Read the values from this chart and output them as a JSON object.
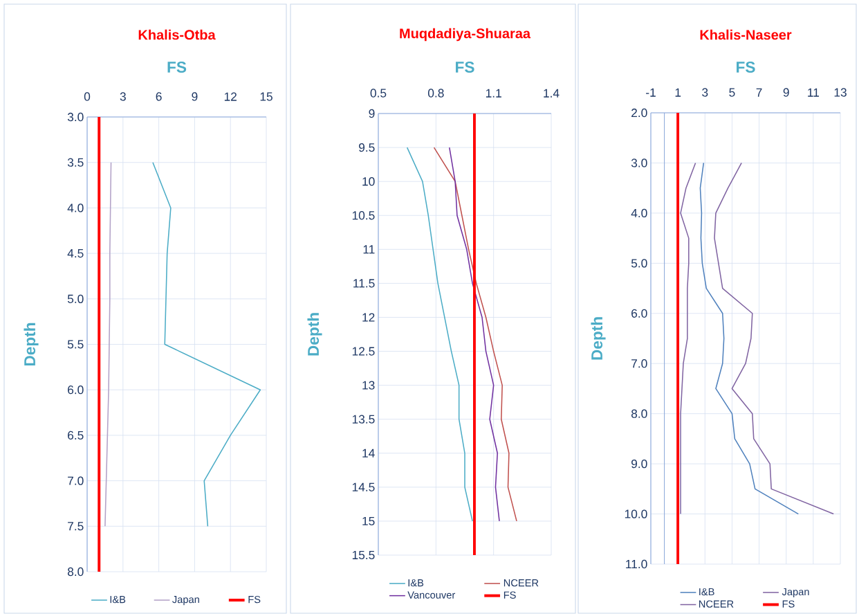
{
  "chart_data": [
    {
      "type": "line",
      "title": "Khalis-Otba",
      "xlabel": "FS",
      "ylabel": "Depth",
      "xlim": [
        0,
        15
      ],
      "xticks": [
        0,
        3,
        6,
        9,
        12,
        15
      ],
      "ylim": [
        8.0,
        3.0
      ],
      "yticks": [
        {
          "value": 3,
          "label": "3.0"
        },
        {
          "value": 3.5,
          "label": "3.5"
        },
        {
          "value": 4,
          "label": "4.0"
        },
        {
          "value": 4.5,
          "label": "4.5"
        },
        {
          "value": 5,
          "label": "5.0"
        },
        {
          "value": 5.5,
          "label": "5.5"
        },
        {
          "value": 6,
          "label": "6.0"
        },
        {
          "value": 6.5,
          "label": "6.5"
        },
        {
          "value": 7,
          "label": "7.0"
        },
        {
          "value": 7.5,
          "label": "7.5"
        },
        {
          "value": 8,
          "label": "8.0"
        }
      ],
      "grid": true,
      "legend": "bottom",
      "series": [
        {
          "name": "I&B",
          "color": "#4bacc6",
          "x": [
            5.5,
            7.0,
            6.7,
            6.6,
            6.5,
            14.5,
            12.0,
            9.8,
            10.1
          ],
          "values": [
            3.5,
            4.0,
            4.5,
            5.0,
            5.5,
            6.0,
            6.5,
            7.0,
            7.5
          ]
        },
        {
          "name": "Japan",
          "color": "#b2a1c7",
          "x": [
            2.0,
            1.95,
            1.9,
            1.9,
            1.85,
            1.8,
            1.7,
            1.6,
            1.5
          ],
          "values": [
            3.5,
            4.0,
            4.5,
            5.0,
            5.5,
            6.0,
            6.5,
            7.0,
            7.5
          ]
        }
      ],
      "ref_lines": [
        {
          "axis": "x",
          "value": 1,
          "label": "FS",
          "color": "#ff0000"
        }
      ]
    },
    {
      "type": "line",
      "title": "Muqdadiya-Shuaraa",
      "xlabel": "FS",
      "ylabel": "Depth",
      "xlim": [
        0.5,
        1.4
      ],
      "xticks": [
        0.5,
        0.8,
        1.1,
        1.4
      ],
      "ylim": [
        15.5,
        9
      ],
      "yticks": [
        9,
        9.5,
        10,
        10.5,
        11,
        11.5,
        12,
        12.5,
        13,
        13.5,
        14,
        14.5,
        15,
        15.5
      ],
      "grid": true,
      "legend": "bottom",
      "series": [
        {
          "name": "I&B",
          "color": "#4bacc6",
          "x": [
            0.65,
            0.73,
            0.76,
            0.785,
            0.81,
            0.845,
            0.88,
            0.92,
            0.92,
            0.95,
            0.95,
            0.99
          ],
          "values": [
            9.5,
            10,
            10.5,
            11,
            11.5,
            12,
            12.5,
            13,
            13.5,
            14,
            14.5,
            15
          ]
        },
        {
          "name": "NCEER",
          "color": "#c0504d",
          "x": [
            0.79,
            0.9,
            0.935,
            0.97,
            1.01,
            1.06,
            1.1,
            1.145,
            1.14,
            1.18,
            1.175,
            1.22
          ],
          "values": [
            9.5,
            10,
            10.5,
            11,
            11.5,
            12,
            12.5,
            13,
            13.5,
            14,
            14.5,
            15
          ]
        },
        {
          "name": "Vancouver",
          "color": "#7030a0",
          "x": [
            0.87,
            0.9,
            0.91,
            0.96,
            0.99,
            1.04,
            1.06,
            1.1,
            1.08,
            1.12,
            1.11,
            1.13
          ],
          "values": [
            9.5,
            10,
            10.5,
            11,
            11.5,
            12,
            12.5,
            13,
            13.5,
            14,
            14.5,
            15
          ]
        }
      ],
      "ref_lines": [
        {
          "axis": "x",
          "value": 1,
          "label": "FS",
          "color": "#ff0000"
        }
      ]
    },
    {
      "type": "line",
      "title": "Khalis-Naseer",
      "xlabel": "FS",
      "ylabel": "Depth",
      "xlim": [
        -1,
        13
      ],
      "xticks": [
        -1,
        1,
        3,
        5,
        7,
        9,
        11,
        13
      ],
      "ylim": [
        11.0,
        2.0
      ],
      "yticks": [
        {
          "value": 2,
          "label": "2.0"
        },
        {
          "value": 3,
          "label": "3.0"
        },
        {
          "value": 4,
          "label": "4.0"
        },
        {
          "value": 5,
          "label": "5.0"
        },
        {
          "value": 6,
          "label": "6.0"
        },
        {
          "value": 7,
          "label": "7.0"
        },
        {
          "value": 8,
          "label": "8.0"
        },
        {
          "value": 9,
          "label": "9.0"
        },
        {
          "value": 10,
          "label": "10.0"
        },
        {
          "value": 11,
          "label": "11.0"
        }
      ],
      "grid": true,
      "legend": "bottom",
      "series": [
        {
          "name": "I&B",
          "color": "#4f81bd",
          "x": [
            2.9,
            2.65,
            2.75,
            2.7,
            2.8,
            3.1,
            4.3,
            4.4,
            4.3,
            3.8,
            5.0,
            5.2,
            6.3,
            6.7,
            9.9
          ],
          "values": [
            3,
            3.5,
            4,
            4.5,
            5,
            5.5,
            6,
            6.5,
            7,
            7.5,
            8,
            8.5,
            9,
            9.5,
            10
          ]
        },
        {
          "name": "Japan",
          "color": "#8064a2",
          "x": [
            2.3,
            1.6,
            1.2,
            1.8,
            1.8,
            1.7,
            1.7,
            1.7,
            1.4,
            1.3,
            1.2,
            1.2,
            1.2,
            1.2,
            1.2
          ],
          "values": [
            3,
            3.5,
            4,
            4.5,
            5,
            5.5,
            6,
            6.5,
            7,
            7.5,
            8,
            8.5,
            9,
            9.5,
            10
          ]
        },
        {
          "name": "NCEER",
          "color": "#8064a2",
          "x": [
            5.7,
            4.7,
            3.8,
            3.7,
            4.0,
            4.3,
            6.5,
            6.4,
            6.0,
            5.0,
            6.5,
            6.6,
            7.8,
            7.9,
            12.5
          ],
          "values": [
            3,
            3.5,
            4,
            4.5,
            5,
            5.5,
            6,
            6.5,
            7,
            7.5,
            8,
            8.5,
            9,
            9.5,
            10
          ]
        }
      ],
      "ref_lines": [
        {
          "axis": "x",
          "value": 1,
          "label": "FS",
          "color": "#ff0000"
        },
        {
          "axis": "x",
          "value": 0,
          "color": "#8eaadb"
        }
      ]
    }
  ]
}
